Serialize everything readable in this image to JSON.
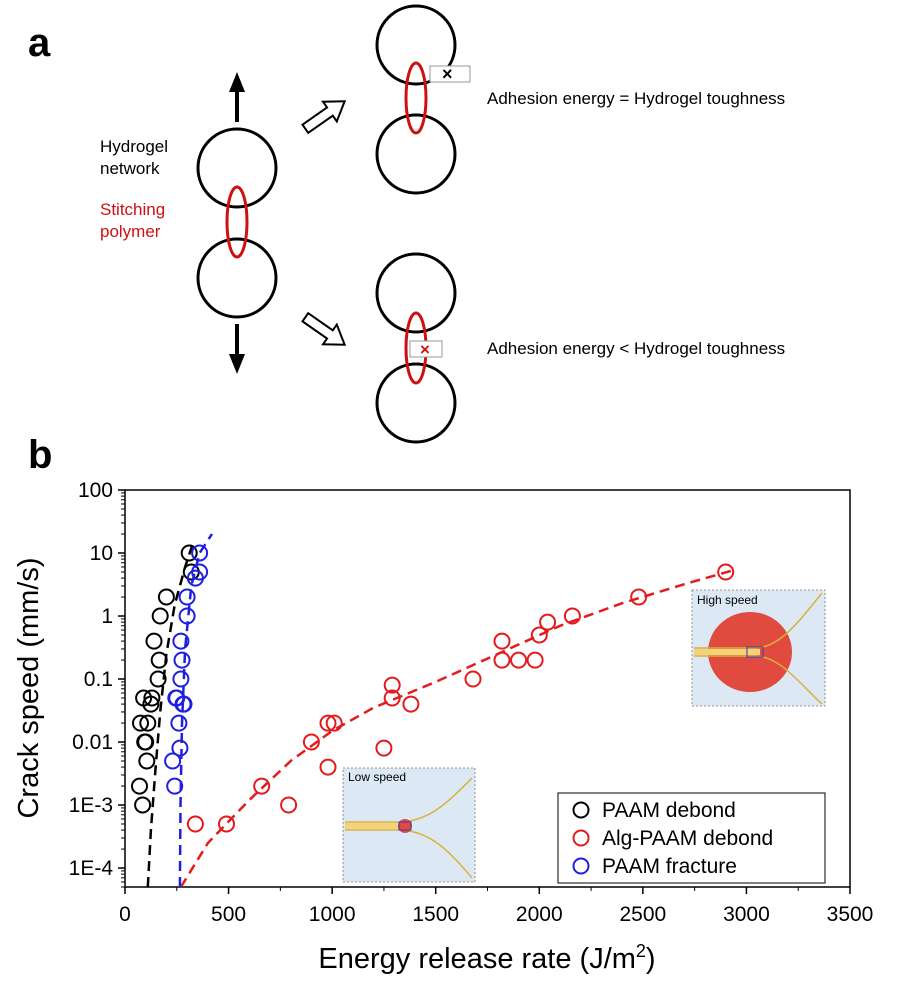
{
  "panel_a": {
    "letter": "a",
    "label_network": [
      "Hydrogel",
      "network"
    ],
    "label_polymer": [
      "Stitching",
      "polymer"
    ],
    "outcome_equal": "Adhesion energy = Hydrogel toughness",
    "outcome_less": "Adhesion energy < Hydrogel toughness",
    "cross_symbol": "×",
    "colors": {
      "network": "#000000",
      "polymer": "#d01010"
    }
  },
  "panel_b": {
    "letter": "b",
    "inset_high": "High speed",
    "inset_low": "Low speed"
  },
  "chart_data": {
    "type": "scatter",
    "xlabel": "Energy release rate (J/m",
    "xlabel_sup": "2",
    "xlabel_close": ")",
    "ylabel": "Crack speed (mm/s)",
    "xlim": [
      0,
      3500
    ],
    "ylim": [
      5e-05,
      100
    ],
    "yscale": "log",
    "xticks": [
      0,
      500,
      1000,
      1500,
      2000,
      2500,
      3000,
      3500
    ],
    "xtick_labels": [
      "0",
      "500",
      "1000",
      "1500",
      "2000",
      "2500",
      "3000",
      "3500"
    ],
    "yticks": [
      0.0001,
      0.001,
      0.01,
      0.1,
      1,
      10,
      100
    ],
    "ytick_labels": [
      "1E-4",
      "1E-3",
      "0.01",
      "0.1",
      "1",
      "10",
      "100"
    ],
    "legend_position": "bottom-right",
    "series": [
      {
        "name": "PAAM debond",
        "color": "#000000",
        "points": [
          [
            70,
            0.002
          ],
          [
            85,
            0.001
          ],
          [
            75,
            0.02
          ],
          [
            95,
            0.01
          ],
          [
            105,
            0.005
          ],
          [
            90,
            0.05
          ],
          [
            110,
            0.02
          ],
          [
            125,
            0.04
          ],
          [
            130,
            0.05
          ],
          [
            140,
            0.4
          ],
          [
            160,
            0.1
          ],
          [
            165,
            0.2
          ],
          [
            170,
            1.0
          ],
          [
            200,
            2.0
          ],
          [
            310,
            10.0
          ],
          [
            320,
            5.0
          ],
          [
            100,
            0.01
          ]
        ],
        "fit": [
          [
            110,
            5e-05
          ],
          [
            125,
            0.0004
          ],
          [
            145,
            0.003
          ],
          [
            170,
            0.03
          ],
          [
            200,
            0.25
          ],
          [
            240,
            1.5
          ],
          [
            290,
            6.0
          ],
          [
            330,
            15.0
          ]
        ]
      },
      {
        "name": "Alg-PAAM debond",
        "color": "#e41a1c",
        "points": [
          [
            340,
            0.0005
          ],
          [
            490,
            0.0005
          ],
          [
            660,
            0.002
          ],
          [
            790,
            0.001
          ],
          [
            900,
            0.01
          ],
          [
            980,
            0.02
          ],
          [
            980,
            0.004
          ],
          [
            1010,
            0.02
          ],
          [
            1250,
            0.008
          ],
          [
            1290,
            0.08
          ],
          [
            1290,
            0.05
          ],
          [
            1380,
            0.04
          ],
          [
            1680,
            0.1
          ],
          [
            1820,
            0.4
          ],
          [
            1820,
            0.2
          ],
          [
            1900,
            0.2
          ],
          [
            1980,
            0.2
          ],
          [
            2000,
            0.5
          ],
          [
            2040,
            0.8
          ],
          [
            2160,
            1.0
          ],
          [
            2480,
            2.0
          ],
          [
            2900,
            5.0
          ]
        ],
        "fit": [
          [
            270,
            5e-05
          ],
          [
            400,
            0.00025
          ],
          [
            600,
            0.0012
          ],
          [
            800,
            0.005
          ],
          [
            1000,
            0.015
          ],
          [
            1200,
            0.035
          ],
          [
            1500,
            0.09
          ],
          [
            1800,
            0.25
          ],
          [
            2100,
            0.7
          ],
          [
            2400,
            1.6
          ],
          [
            2700,
            3.2
          ],
          [
            2950,
            5.5
          ]
        ]
      },
      {
        "name": "PAAM fracture",
        "color": "#1f1fe0",
        "points": [
          [
            230,
            0.005
          ],
          [
            240,
            0.002
          ],
          [
            245,
            0.05
          ],
          [
            260,
            0.02
          ],
          [
            265,
            0.008
          ],
          [
            270,
            0.1
          ],
          [
            270,
            0.4
          ],
          [
            275,
            0.2
          ],
          [
            285,
            0.04
          ],
          [
            300,
            1.0
          ],
          [
            300,
            2.0
          ],
          [
            340,
            4.0
          ],
          [
            360,
            5.0
          ],
          [
            360,
            10.0
          ],
          [
            280,
            0.04
          ],
          [
            250,
            0.05
          ]
        ],
        "fit": [
          [
            265,
            5e-05
          ],
          [
            268,
            0.001
          ],
          [
            275,
            0.02
          ],
          [
            290,
            0.3
          ],
          [
            320,
            3.0
          ],
          [
            360,
            10.0
          ],
          [
            420,
            20.0
          ]
        ]
      }
    ]
  }
}
